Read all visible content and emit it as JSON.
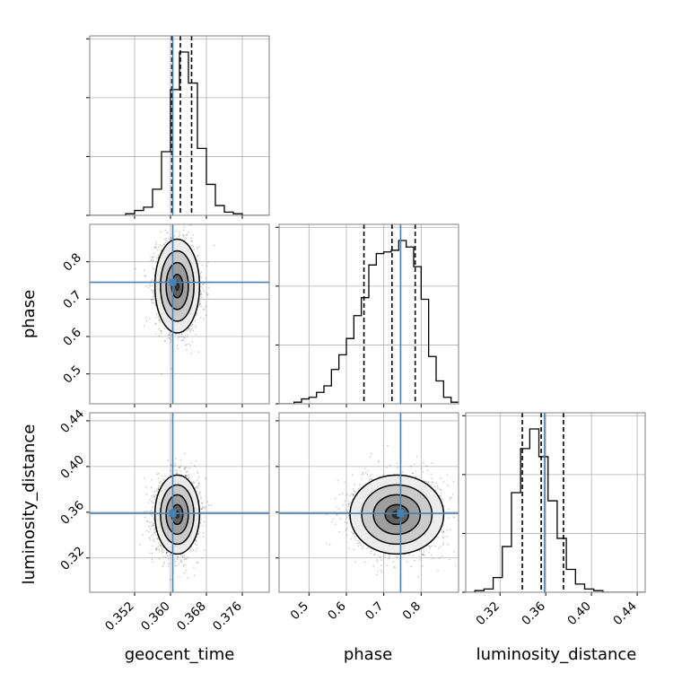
{
  "chart_data": {
    "type": "corner",
    "parameters": [
      "geocent_time",
      "phase",
      "luminosity_distance"
    ],
    "axis_labels": {
      "x": [
        "geocent_time",
        "phase",
        "luminosity_distance"
      ],
      "y_phase": "phase",
      "y_luminosity_distance": "luminosity_distance"
    },
    "ranges": {
      "geocent_time": [
        0.342,
        0.382
      ],
      "phase": [
        0.42,
        0.9
      ],
      "luminosity_distance": [
        0.29,
        0.447
      ]
    },
    "ticks": {
      "geocent_time": {
        "values": [
          0.352,
          0.36,
          0.368,
          0.376
        ],
        "labels": [
          "0.352",
          "0.360",
          "0.368",
          "0.376"
        ]
      },
      "phase": {
        "values": [
          0.5,
          0.6,
          0.7,
          0.8
        ],
        "labels": [
          "0.5",
          "0.6",
          "0.7",
          "0.8"
        ]
      },
      "luminosity_distance": {
        "values": [
          0.32,
          0.36,
          0.4,
          0.44
        ],
        "labels": [
          "0.32",
          "0.36",
          "0.40",
          "0.44"
        ]
      }
    },
    "truths": {
      "geocent_time": 0.3605,
      "phase": 0.745,
      "luminosity_distance": 0.359
    },
    "truth_color": "#4682b4",
    "quantiles": {
      "geocent_time": [
        0.3603,
        0.3622,
        0.3647
      ],
      "phase": [
        0.647,
        0.722,
        0.784
      ],
      "luminosity_distance": [
        0.3395,
        0.356,
        0.3755
      ]
    },
    "histograms": {
      "geocent_time": {
        "edges": [
          0.342,
          0.344,
          0.346,
          0.348,
          0.35,
          0.352,
          0.354,
          0.356,
          0.358,
          0.36,
          0.362,
          0.364,
          0.366,
          0.368,
          0.37,
          0.372,
          0.374,
          0.376,
          0.378,
          0.38,
          0.382
        ],
        "counts": [
          0,
          0,
          0,
          0,
          0.01,
          0.03,
          0.05,
          0.16,
          0.39,
          0.77,
          1.0,
          0.81,
          0.41,
          0.19,
          0.06,
          0.02,
          0.01,
          0,
          0,
          0
        ]
      },
      "phase": {
        "edges": [
          0.42,
          0.44,
          0.46,
          0.48,
          0.5,
          0.52,
          0.54,
          0.56,
          0.58,
          0.6,
          0.62,
          0.64,
          0.66,
          0.68,
          0.7,
          0.72,
          0.74,
          0.76,
          0.78,
          0.8,
          0.82,
          0.84,
          0.86,
          0.88,
          0.9
        ],
        "counts": [
          0,
          0,
          0.01,
          0.03,
          0.04,
          0.07,
          0.11,
          0.21,
          0.3,
          0.4,
          0.54,
          0.65,
          0.85,
          0.92,
          0.93,
          0.94,
          1.0,
          0.96,
          0.84,
          0.64,
          0.29,
          0.14,
          0.04,
          0.01
        ]
      },
      "luminosity_distance": {
        "edges": [
          0.29,
          0.298,
          0.306,
          0.314,
          0.322,
          0.33,
          0.338,
          0.346,
          0.354,
          0.362,
          0.37,
          0.378,
          0.386,
          0.394,
          0.402,
          0.41,
          0.418,
          0.426,
          0.434,
          0.442,
          0.447
        ],
        "counts": [
          0,
          0.01,
          0.02,
          0.09,
          0.28,
          0.61,
          0.88,
          1.0,
          0.83,
          0.56,
          0.33,
          0.14,
          0.05,
          0.02,
          0.01,
          0,
          0,
          0,
          0,
          0
        ]
      }
    },
    "posterior_2d": {
      "geocent_time__phase": {
        "center": [
          0.3615,
          0.735
        ],
        "sigma": [
          0.0023,
          0.058
        ],
        "rho": -0.08
      },
      "geocent_time__luminosity_distance": {
        "center": [
          0.3615,
          0.358
        ],
        "sigma": [
          0.0023,
          0.016
        ],
        "rho": 0.05
      },
      "phase__luminosity_distance": {
        "center": [
          0.735,
          0.358
        ],
        "sigma": [
          0.058,
          0.016
        ],
        "rho": 0.02
      }
    },
    "contour_levels_sigma": [
      0.5,
      1.0,
      1.5,
      2.0
    ],
    "grid": true
  }
}
